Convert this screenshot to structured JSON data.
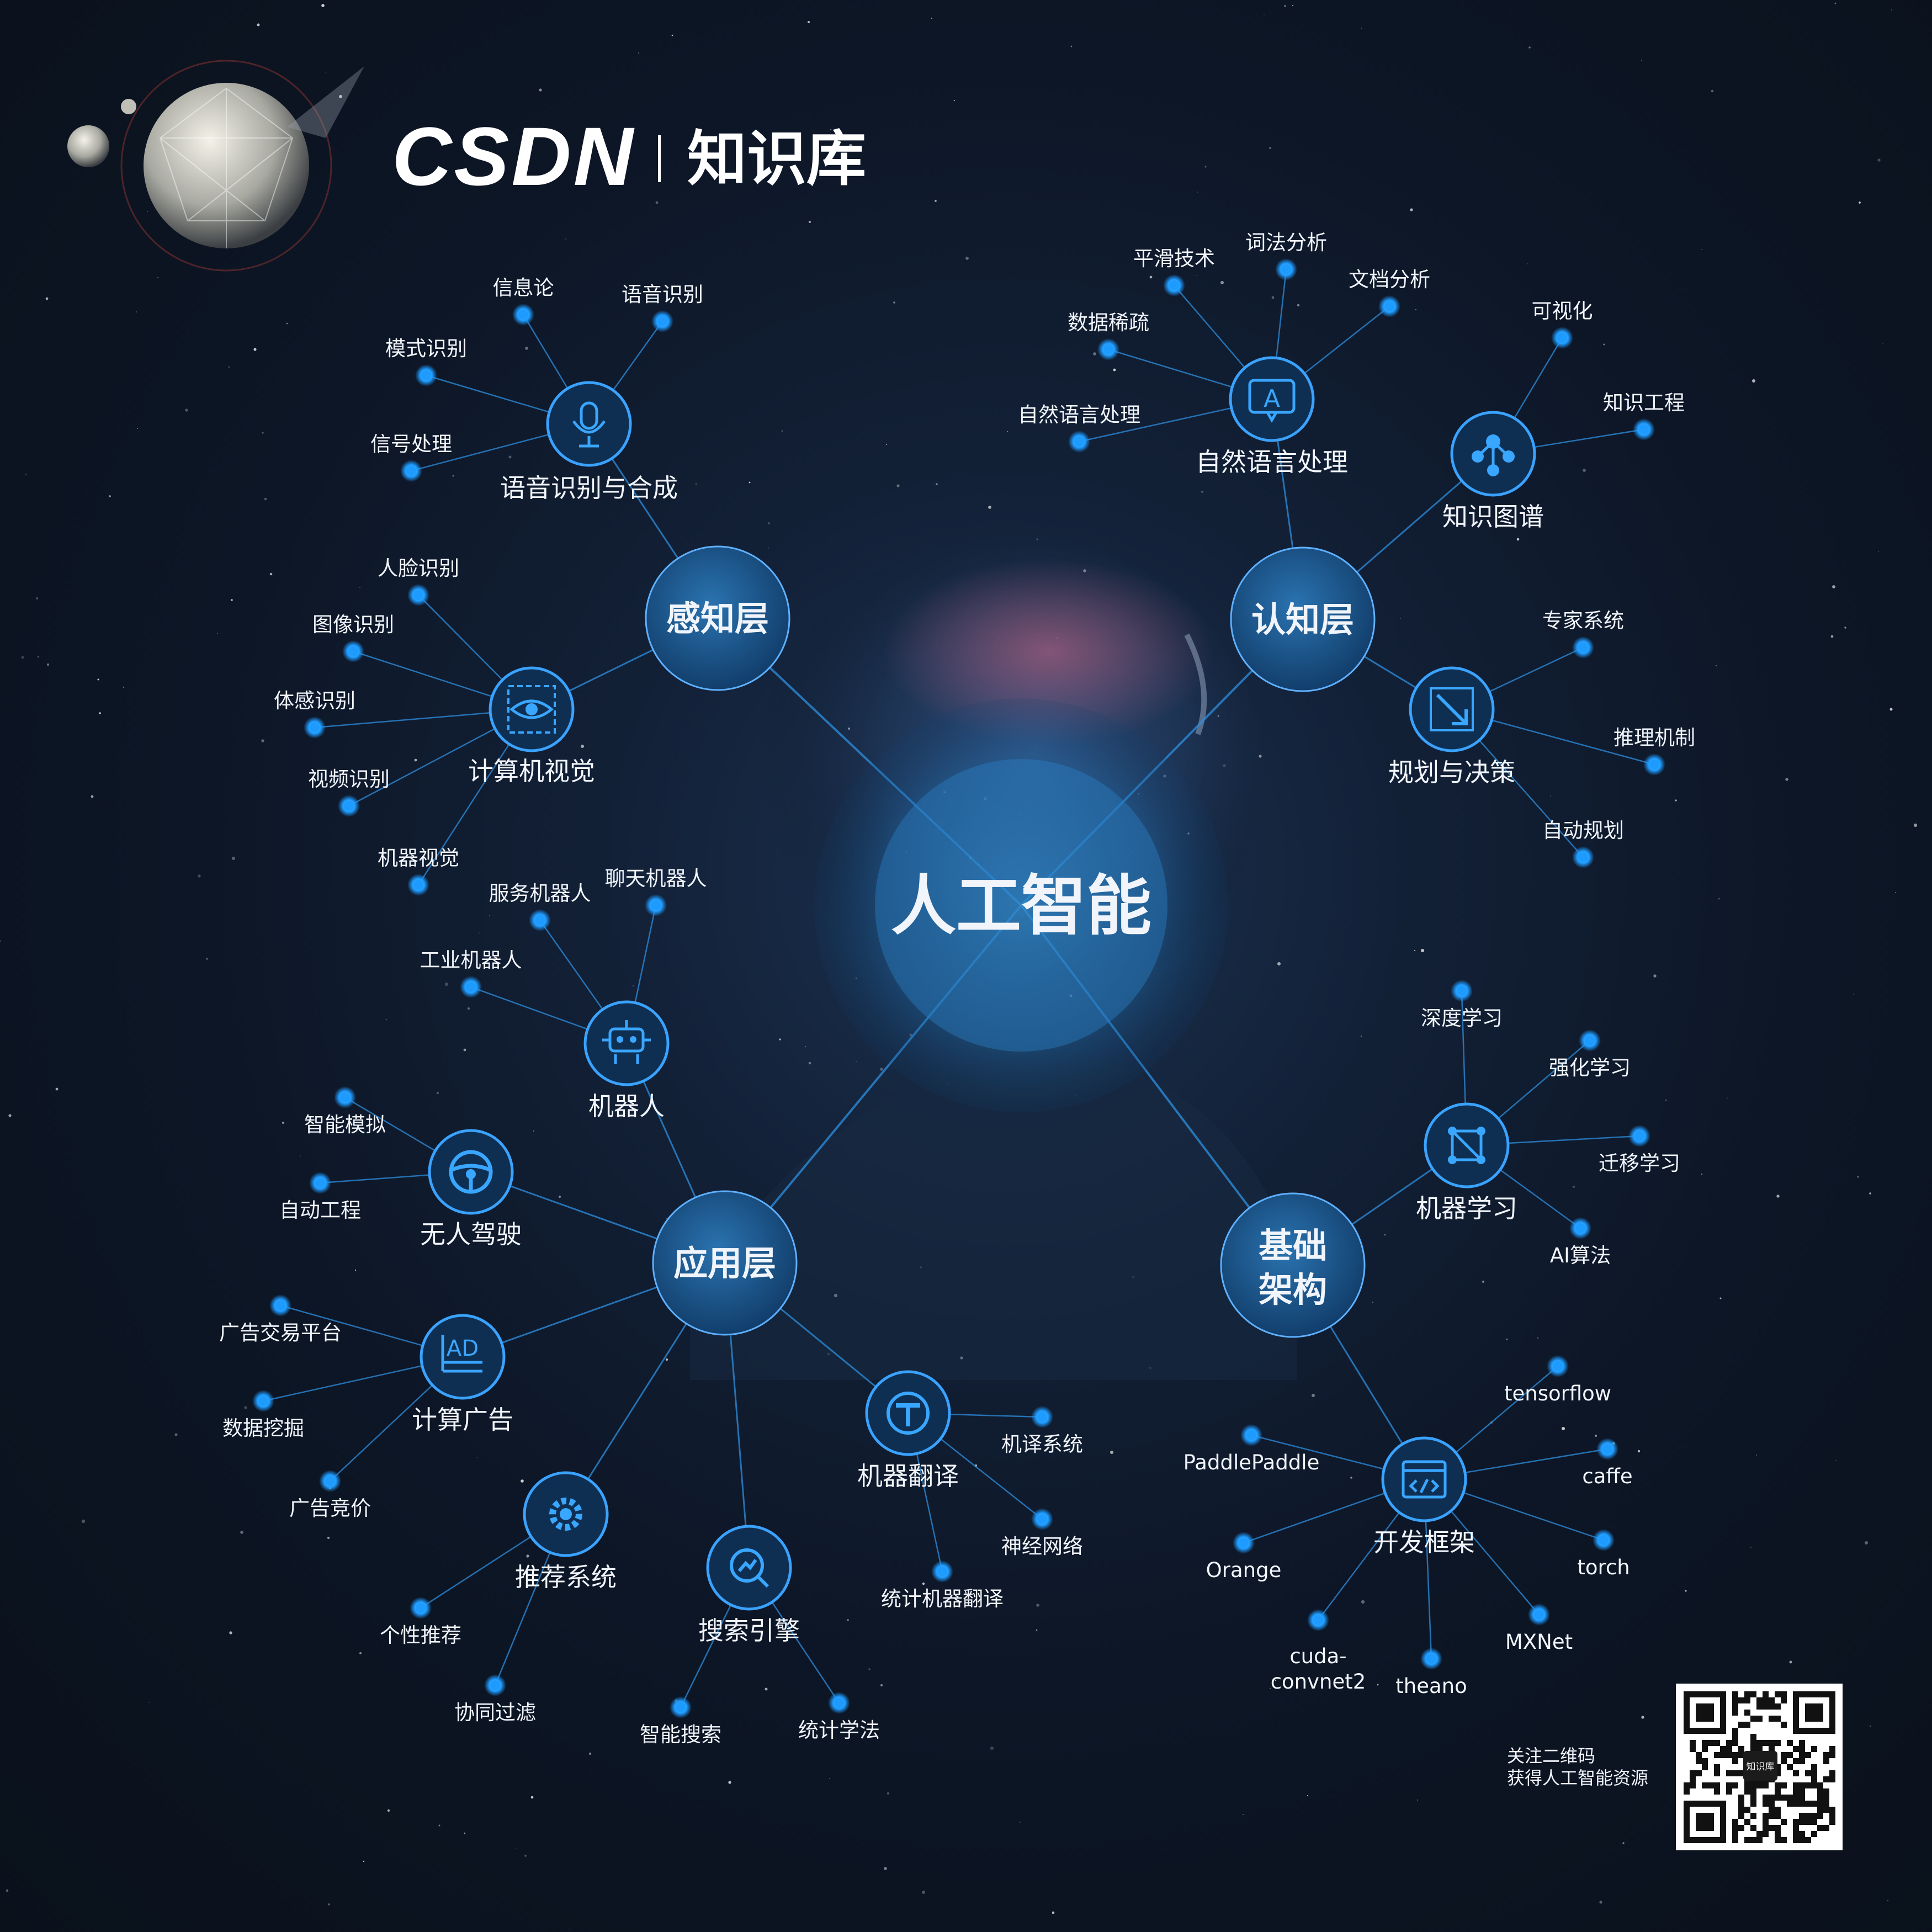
{
  "brand": {
    "logo_text": "CSDN",
    "product_name": "知识库"
  },
  "center": {
    "label": "人工智能"
  },
  "layers": {
    "perception": "感知层",
    "cognition": "认知层",
    "application": "应用层",
    "foundation": {
      "line1": "基础",
      "line2": "架构"
    }
  },
  "groups": {
    "speech": {
      "label": "语音识别与合成",
      "icon": "microphone-icon",
      "leaves": [
        "信息论",
        "语音识别",
        "模式识别",
        "信号处理"
      ]
    },
    "vision": {
      "label": "计算机视觉",
      "icon": "eye-icon",
      "leaves": [
        "人脸识别",
        "图像识别",
        "体感识别",
        "视频识别",
        "机器视觉"
      ]
    },
    "nlp": {
      "label": "自然语言处理",
      "icon": "letter-a-chat-icon",
      "leaves": [
        "平滑技术",
        "词法分析",
        "文档分析",
        "数据稀疏",
        "自然语言处理"
      ]
    },
    "kg": {
      "label": "知识图谱",
      "icon": "graph-nodes-icon",
      "leaves": [
        "可视化",
        "知识工程"
      ]
    },
    "planning": {
      "label": "规划与决策",
      "icon": "decision-arrow-icon",
      "leaves": [
        "专家系统",
        "推理机制",
        "自动规划"
      ]
    },
    "robot": {
      "label": "机器人",
      "icon": "robot-icon",
      "leaves": [
        "服务机器人",
        "聊天机器人",
        "工业机器人"
      ]
    },
    "driving": {
      "label": "无人驾驶",
      "icon": "steering-wheel-icon",
      "leaves": [
        "智能模拟",
        "自动工程"
      ]
    },
    "ads": {
      "label": "计算广告",
      "icon": "ad-icon",
      "icon_text": "AD",
      "leaves": [
        "广告交易平台",
        "数据挖掘",
        "广告竞价"
      ]
    },
    "recommend": {
      "label": "推荐系统",
      "icon": "gear-icon",
      "leaves": [
        "个性推荐",
        "协同过滤"
      ]
    },
    "search": {
      "label": "搜索引擎",
      "icon": "search-chart-icon",
      "leaves": [
        "智能搜索",
        "统计学法"
      ]
    },
    "translate": {
      "label": "机器翻译",
      "icon": "translate-t-icon",
      "leaves": [
        "机译系统",
        "神经网络",
        "统计机器翻译"
      ]
    },
    "ml": {
      "label": "机器学习",
      "icon": "network-square-icon",
      "leaves": [
        "深度学习",
        "强化学习",
        "迁移学习",
        "AI算法"
      ]
    },
    "framework": {
      "label": "开发框架",
      "icon": "code-window-icon",
      "leaves": [
        "tensorflow",
        "PaddlePaddle",
        "caffe",
        "Orange",
        "torch",
        "cuda-convnet2",
        "MXNet",
        "theano"
      ]
    }
  },
  "qr": {
    "line1": "关注二维码",
    "line2": "获得人工智能资源",
    "badge": "知识库"
  },
  "colors": {
    "accent": "#1e9bff",
    "node_fill": "#123a63",
    "node_stroke": "#3aa2ff",
    "line": "#2d8fe0",
    "text": "#f1f5fb",
    "background": "#0d1626"
  }
}
